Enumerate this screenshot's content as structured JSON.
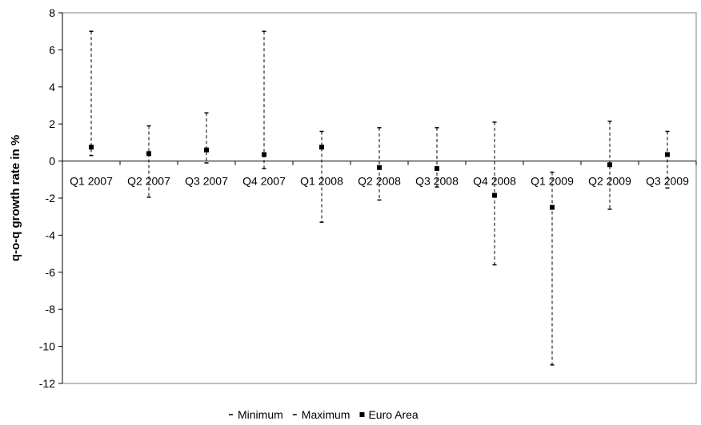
{
  "chart_data": {
    "type": "scatter",
    "xlabel": "",
    "ylabel": "q-o-q growth rate in %",
    "ylim": [
      -12,
      8
    ],
    "yticks": [
      -12,
      -10,
      -8,
      -6,
      -4,
      -2,
      0,
      2,
      4,
      6,
      8
    ],
    "grid": false,
    "legend_position": "bottom",
    "categories": [
      "Q1 2007",
      "Q2 2007",
      "Q3 2007",
      "Q4 2007",
      "Q1 2008",
      "Q2 2008",
      "Q3 2008",
      "Q4 2008",
      "Q1 2009",
      "Q2 2009",
      "Q3 2009"
    ],
    "series": [
      {
        "name": "Minimum",
        "marker": "dash",
        "values": [
          0.3,
          -1.95,
          -0.1,
          -0.4,
          -3.3,
          -2.1,
          -1.4,
          -5.6,
          -11.0,
          -2.6,
          -1.45
        ]
      },
      {
        "name": "Maximum",
        "marker": "dash",
        "values": [
          7.0,
          1.9,
          2.6,
          7.0,
          1.6,
          1.8,
          1.8,
          2.1,
          -0.6,
          2.15,
          1.6
        ]
      },
      {
        "name": "Euro Area",
        "marker": "square",
        "values": [
          0.75,
          0.4,
          0.6,
          0.35,
          0.75,
          -0.35,
          -0.4,
          -1.85,
          -2.5,
          -0.2,
          0.35
        ]
      }
    ]
  }
}
